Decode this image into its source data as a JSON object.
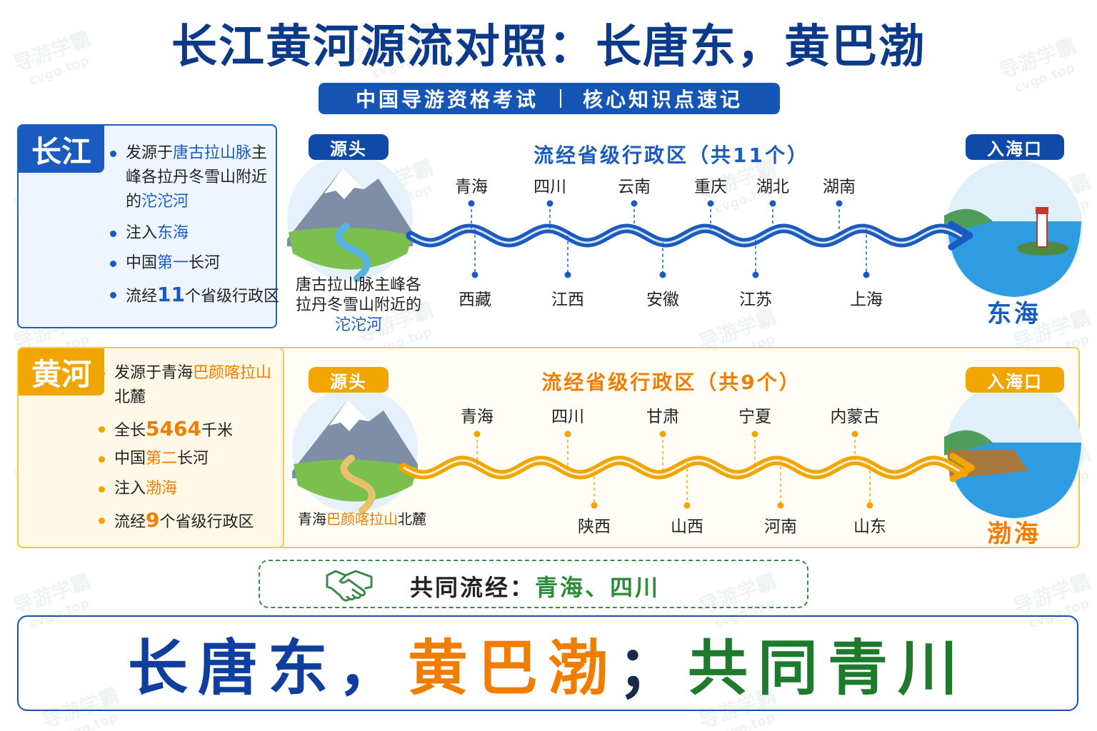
{
  "header": {
    "title": "长江黄河源流对照：长唐东，黄巴渤",
    "subtitle_left": "中国导游资格考试",
    "subtitle_right": "核心知识点速记"
  },
  "watermark": {
    "brand": "导游学霸",
    "site": "cvgo.top"
  },
  "rivers": [
    {
      "name": "长江",
      "facts": [
        [
          "发源于",
          "唐古拉山脉",
          "主峰各拉丹冬雪山附近的",
          "沱沱河"
        ],
        [
          "注入",
          "东海"
        ],
        [
          "中国",
          "第一",
          "长河"
        ],
        [
          "流经",
          "11",
          "个省级行政区"
        ]
      ],
      "source_badge": "源头",
      "source_label": [
        "唐古拉山脉主峰各拉丹冬雪山附近的",
        "沱沱河"
      ],
      "route_title": "流经省级行政区（共11个）",
      "provinces_top": [
        "青海",
        "四川",
        "云南",
        "重庆",
        "湖北",
        "湖南"
      ],
      "provinces_bottom": [
        "西藏",
        "江西",
        "安徽",
        "江苏",
        "上海"
      ],
      "mouth_badge": "入海口",
      "sea": "东海"
    },
    {
      "name": "黄河",
      "facts": [
        [
          "发源于青海",
          "巴颜喀拉山",
          "北麓"
        ],
        [
          "全长",
          "5464",
          "千米"
        ],
        [
          "中国",
          "第二",
          "长河"
        ],
        [
          "注入",
          "渤海"
        ],
        [
          "流经",
          "9",
          "个省级行政区"
        ]
      ],
      "source_badge": "源头",
      "source_label": [
        "青海",
        "巴颜喀拉山",
        "北麓"
      ],
      "route_title": "流经省级行政区（共9个）",
      "provinces_top": [
        "青海",
        "四川",
        "甘肃",
        "宁夏",
        "内蒙古"
      ],
      "provinces_bottom": [
        "陕西",
        "山西",
        "河南",
        "山东"
      ],
      "mouth_badge": "入海口",
      "sea": "渤海"
    }
  ],
  "common": {
    "label": "共同流经：",
    "value": "青海、四川"
  },
  "footer": [
    "长唐东，",
    "黄巴渤",
    "；",
    "共同青川"
  ]
}
